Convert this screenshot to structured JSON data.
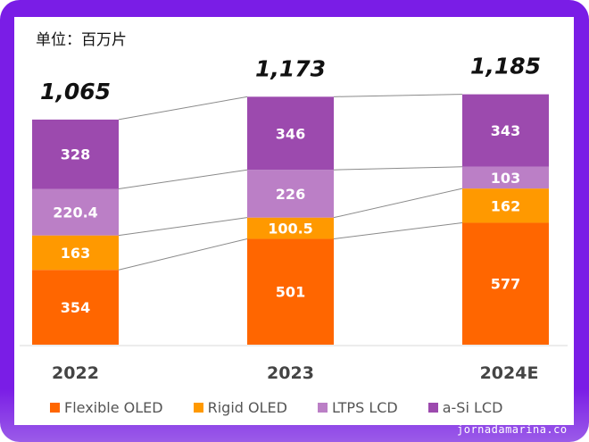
{
  "unit_label": "单位：百万片",
  "watermark": "jornadamarina.co",
  "chart_data": {
    "type": "bar",
    "stacked": true,
    "title": "",
    "unit": "百万片",
    "xlabel": "",
    "ylabel": "",
    "categories": [
      "2022",
      "2023",
      "2024E"
    ],
    "totals": [
      "1,065",
      "1,173",
      "1,185"
    ],
    "total_values": [
      1065,
      1173,
      1185
    ],
    "series": [
      {
        "name": "Flexible OLED",
        "color": "#ff6600",
        "values": [
          354,
          501,
          577
        ],
        "labels": [
          "354",
          "501",
          "577"
        ]
      },
      {
        "name": "Rigid OLED",
        "color": "#ff9900",
        "values": [
          163,
          100.5,
          162
        ],
        "labels": [
          "163",
          "100.5",
          "162"
        ]
      },
      {
        "name": "LTPS LCD",
        "color": "#bb7fc6",
        "values": [
          220.4,
          226,
          103
        ],
        "labels": [
          "220.4",
          "226",
          "103"
        ]
      },
      {
        "name": "a-Si LCD",
        "color": "#9c4aae",
        "values": [
          328,
          346,
          343
        ],
        "labels": [
          "328",
          "346",
          "343"
        ]
      }
    ],
    "ylim": [
      0,
      1200
    ],
    "grid": false,
    "connector_lines": true,
    "legend_position": "bottom"
  }
}
